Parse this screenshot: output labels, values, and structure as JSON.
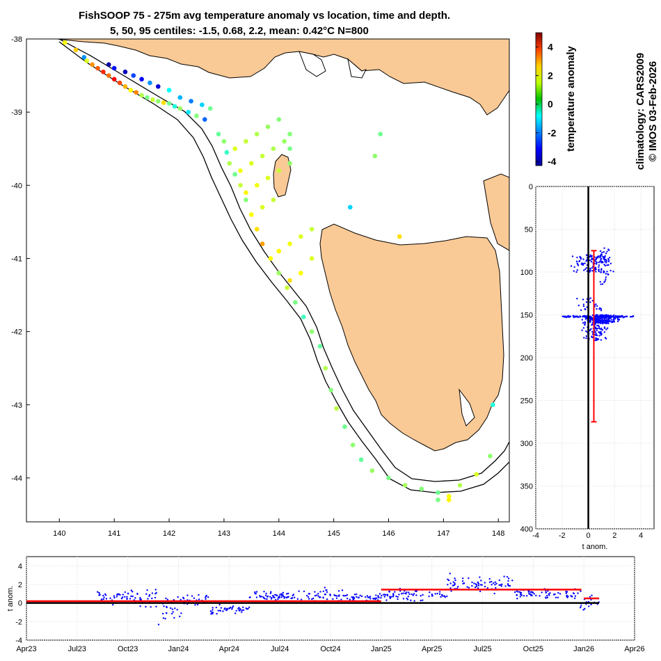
{
  "title": {
    "line1": "FishSOOP 75 - 275m avg temperature anomaly vs location, time and depth.",
    "line2": "5, 50, 95 centiles: -1.5, 0.68, 2.2, mean: 0.42°C N=800"
  },
  "side_text": {
    "climatology": "climatology: CARS2009",
    "copyright": "© IMOS 03-Feb-2026"
  },
  "colors": {
    "land": "#f9c996",
    "profile_points": "#0000ff",
    "mean_line": "#ff0000",
    "zero_line": "#000000"
  },
  "chart_data": [
    {
      "type": "scatter",
      "name": "map",
      "xlim": [
        139.4,
        148.2
      ],
      "ylim": [
        -44.6,
        -38.0
      ],
      "xticks": [
        140,
        141,
        142,
        143,
        144,
        145,
        146,
        147,
        148
      ],
      "yticks": [
        -38,
        -39,
        -40,
        -41,
        -42,
        -43,
        -44
      ],
      "points": [
        [
          140.1,
          -38.05,
          1.5
        ],
        [
          140.3,
          -38.15,
          2.0
        ],
        [
          140.45,
          -38.25,
          -1.8
        ],
        [
          140.5,
          -38.3,
          1.2
        ],
        [
          140.6,
          -38.35,
          2.5
        ],
        [
          140.7,
          -38.4,
          3.0
        ],
        [
          140.8,
          -38.45,
          3.5
        ],
        [
          140.9,
          -38.5,
          2.8
        ],
        [
          141.0,
          -38.55,
          3.8
        ],
        [
          141.1,
          -38.6,
          3.2
        ],
        [
          141.2,
          -38.65,
          2.2
        ],
        [
          141.3,
          -38.7,
          1.5
        ],
        [
          141.4,
          -38.73,
          2.6
        ],
        [
          141.5,
          -38.77,
          0.8
        ],
        [
          141.6,
          -38.8,
          0.3
        ],
        [
          141.7,
          -38.83,
          1.0
        ],
        [
          141.8,
          -38.85,
          0.5
        ],
        [
          141.9,
          -38.87,
          1.8
        ],
        [
          142.0,
          -38.88,
          0.2
        ],
        [
          142.1,
          -38.92,
          -0.5
        ],
        [
          142.2,
          -38.95,
          0.6
        ],
        [
          142.35,
          -39.0,
          -1.0
        ],
        [
          142.5,
          -39.05,
          0.4
        ],
        [
          142.65,
          -39.1,
          -2.2
        ],
        [
          140.9,
          -38.35,
          -4.0
        ],
        [
          141.0,
          -38.4,
          -3.0
        ],
        [
          141.2,
          -38.45,
          -3.8
        ],
        [
          141.35,
          -38.5,
          -2.5
        ],
        [
          141.5,
          -38.55,
          -3.2
        ],
        [
          141.65,
          -38.6,
          -1.8
        ],
        [
          141.8,
          -38.65,
          -3.5
        ],
        [
          142.0,
          -38.7,
          -0.8
        ],
        [
          142.2,
          -38.8,
          -1.5
        ],
        [
          142.4,
          -38.85,
          -2.0
        ],
        [
          142.6,
          -38.9,
          -1.2
        ],
        [
          142.75,
          -38.95,
          0.2
        ],
        [
          142.9,
          -39.3,
          0.1
        ],
        [
          143.0,
          -39.4,
          0.5
        ],
        [
          143.05,
          -39.55,
          -0.3
        ],
        [
          143.1,
          -39.7,
          0.8
        ],
        [
          143.2,
          -39.85,
          0.2
        ],
        [
          143.3,
          -40.0,
          1.0
        ],
        [
          143.4,
          -40.2,
          0.4
        ],
        [
          143.5,
          -40.4,
          1.2
        ],
        [
          143.6,
          -40.6,
          1.8
        ],
        [
          143.7,
          -40.8,
          2.4
        ],
        [
          143.85,
          -41.0,
          1.5
        ],
        [
          144.0,
          -41.2,
          0.6
        ],
        [
          144.15,
          -41.4,
          1.0
        ],
        [
          144.3,
          -41.6,
          0.3
        ],
        [
          144.45,
          -41.8,
          -0.2
        ],
        [
          144.6,
          -42.0,
          0.5
        ],
        [
          144.75,
          -42.2,
          0.1
        ],
        [
          144.85,
          -42.5,
          0.8
        ],
        [
          144.95,
          -42.8,
          0.4
        ],
        [
          145.05,
          -43.05,
          0.9
        ],
        [
          145.2,
          -43.3,
          0.2
        ],
        [
          145.35,
          -43.55,
          0.5
        ],
        [
          145.5,
          -43.75,
          0.1
        ],
        [
          145.7,
          -43.9,
          0.6
        ],
        [
          146.0,
          -44.0,
          0.3
        ],
        [
          146.3,
          -44.1,
          0.7
        ],
        [
          146.6,
          -44.15,
          0.4
        ],
        [
          146.9,
          -44.2,
          0.2
        ],
        [
          147.1,
          -44.25,
          1.5
        ],
        [
          147.3,
          -44.1,
          0.8
        ],
        [
          147.6,
          -43.95,
          1.2
        ],
        [
          147.85,
          -43.7,
          0.5
        ],
        [
          143.2,
          -39.5,
          1.2
        ],
        [
          143.4,
          -39.4,
          1.0
        ],
        [
          143.6,
          -39.3,
          0.8
        ],
        [
          143.8,
          -39.2,
          0.6
        ],
        [
          144.0,
          -39.1,
          0.4
        ],
        [
          143.3,
          -39.8,
          1.4
        ],
        [
          143.5,
          -39.7,
          1.2
        ],
        [
          143.7,
          -39.6,
          1.0
        ],
        [
          143.9,
          -39.5,
          0.8
        ],
        [
          144.1,
          -39.4,
          0.6
        ],
        [
          143.4,
          -40.1,
          1.6
        ],
        [
          143.6,
          -40.0,
          1.4
        ],
        [
          143.8,
          -39.9,
          1.2
        ],
        [
          144.0,
          -39.8,
          1.0
        ],
        [
          144.2,
          -39.7,
          0.8
        ],
        [
          143.5,
          -40.4,
          1.5
        ],
        [
          143.7,
          -40.3,
          1.2
        ],
        [
          143.9,
          -40.2,
          1.0
        ],
        [
          144.0,
          -40.9,
          1.6
        ],
        [
          144.2,
          -40.8,
          1.4
        ],
        [
          144.4,
          -40.7,
          1.2
        ],
        [
          144.6,
          -40.6,
          1.0
        ],
        [
          144.2,
          -41.3,
          1.8
        ],
        [
          144.4,
          -41.2,
          1.5
        ],
        [
          144.6,
          -41.0,
          1.2
        ],
        [
          144.2,
          -39.3,
          0.4
        ],
        [
          144.2,
          -39.5,
          0.3
        ],
        [
          144.2,
          -39.7,
          0.5
        ],
        [
          145.3,
          -40.3,
          -1.2
        ],
        [
          145.85,
          -39.3,
          0.2
        ],
        [
          145.75,
          -39.6,
          0.5
        ],
        [
          146.2,
          -40.7,
          1.8
        ],
        [
          147.9,
          -43.0,
          -0.5
        ],
        [
          147.1,
          -44.3,
          1.6
        ],
        [
          146.9,
          -44.3,
          0.3
        ]
      ]
    },
    {
      "type": "scatter",
      "name": "depth_profile",
      "xlabel": "t anom.",
      "xlim": [
        -4,
        5
      ],
      "ylim": [
        0,
        400
      ],
      "xticks": [
        -4,
        -2,
        0,
        2,
        4
      ],
      "yticks": [
        0,
        50,
        100,
        150,
        200,
        250,
        300,
        350,
        400
      ],
      "mean_anomaly": 0.42,
      "mean_depth_range": [
        75,
        275
      ]
    },
    {
      "type": "scatter",
      "name": "time_series",
      "ylabel": "t anom.",
      "ylim": [
        -4,
        5
      ],
      "yticks": [
        -4,
        -2,
        0,
        2,
        4
      ],
      "xticks": [
        "Apr23",
        "Jul23",
        "Oct23",
        "Jan24",
        "Apr24",
        "Jul24",
        "Oct24",
        "Jan25",
        "Apr25",
        "Jul25",
        "Oct25",
        "Jan26",
        "Apr26"
      ],
      "annual_means": [
        {
          "from": 0,
          "to": 7,
          "value": 0.2
        },
        {
          "from": 7,
          "to": 10.95,
          "value": 1.45
        },
        {
          "from": 11,
          "to": 11.3,
          "value": 0.5
        }
      ],
      "data_quarter_range": [
        1.4,
        11.3
      ]
    }
  ],
  "colorbar": {
    "label": "temperature anomaly",
    "min": -4.3,
    "max": 5.0,
    "ticks": [
      4,
      2,
      0,
      -2,
      -4
    ]
  }
}
